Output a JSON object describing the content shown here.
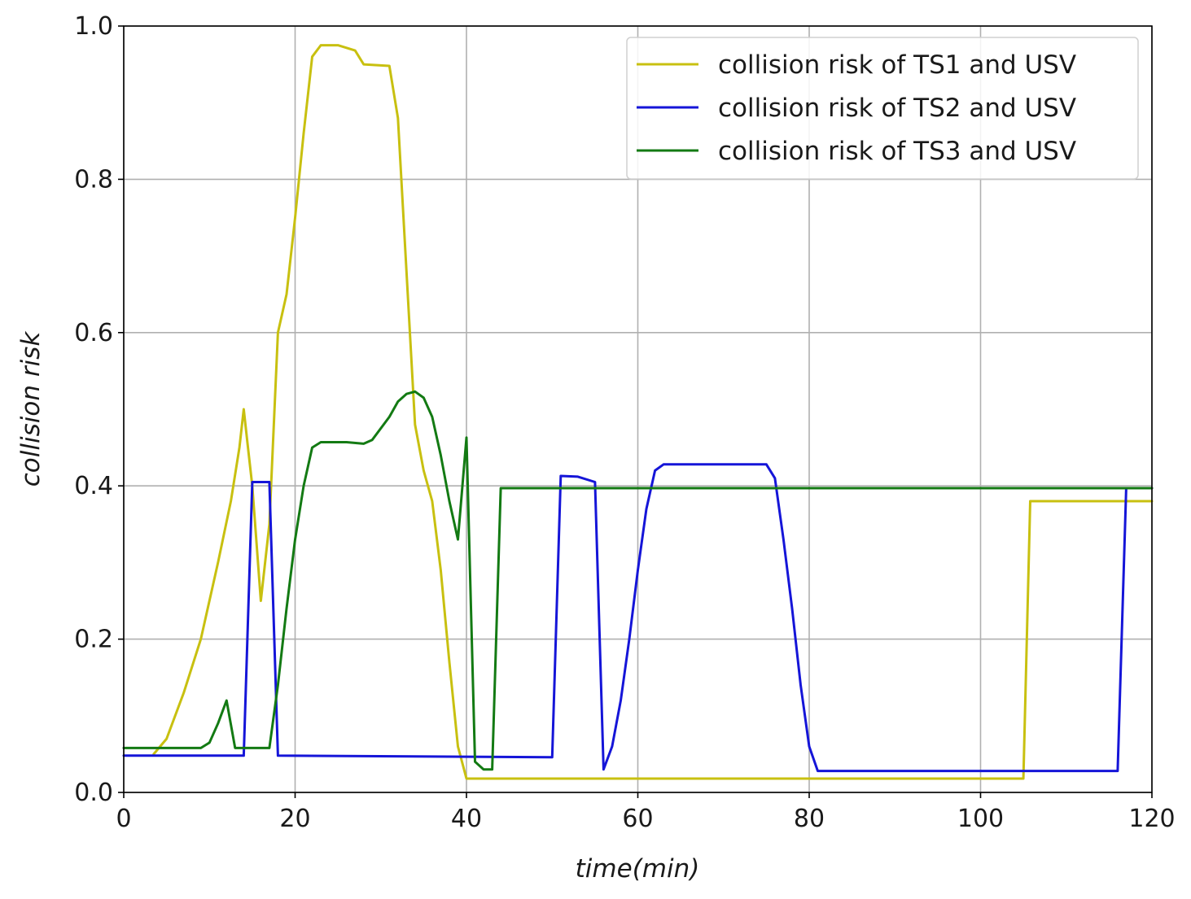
{
  "chart_data": {
    "type": "line",
    "title": "",
    "xlabel": "time(min)",
    "ylabel": "collision risk",
    "xlim": [
      0,
      120
    ],
    "ylim": [
      0,
      1.0
    ],
    "grid": true,
    "legend_position": "top-right",
    "xticks": [
      0,
      20,
      40,
      60,
      80,
      100,
      120
    ],
    "xtick_labels": [
      "0",
      "20",
      "40",
      "60",
      "80",
      "100",
      "120"
    ],
    "yticks": [
      0.0,
      0.2,
      0.4,
      0.6,
      0.8,
      1.0
    ],
    "ytick_labels": [
      "0.0",
      "0.2",
      "0.4",
      "0.6",
      "0.8",
      "1.0"
    ],
    "series": [
      {
        "name": "collision risk of TS1 and USV",
        "color": "#c8c010",
        "points": [
          [
            3.5,
            0.05
          ],
          [
            5,
            0.07
          ],
          [
            7,
            0.13
          ],
          [
            9,
            0.2
          ],
          [
            11,
            0.3
          ],
          [
            12.5,
            0.38
          ],
          [
            13.5,
            0.45
          ],
          [
            14,
            0.5
          ],
          [
            14.5,
            0.45
          ],
          [
            15,
            0.4
          ],
          [
            16,
            0.25
          ],
          [
            17,
            0.35
          ],
          [
            18,
            0.6
          ],
          [
            19,
            0.65
          ],
          [
            20,
            0.75
          ],
          [
            21,
            0.86
          ],
          [
            22,
            0.96
          ],
          [
            23,
            0.975
          ],
          [
            25,
            0.975
          ],
          [
            27,
            0.968
          ],
          [
            28,
            0.95
          ],
          [
            31,
            0.948
          ],
          [
            32,
            0.88
          ],
          [
            33,
            0.68
          ],
          [
            34,
            0.48
          ],
          [
            35,
            0.42
          ],
          [
            36,
            0.38
          ],
          [
            37,
            0.29
          ],
          [
            38,
            0.17
          ],
          [
            39,
            0.06
          ],
          [
            40,
            0.018
          ],
          [
            105,
            0.018
          ],
          [
            105.8,
            0.38
          ],
          [
            120,
            0.38
          ]
        ]
      },
      {
        "name": "collision risk of TS2 and USV",
        "color": "#1515d8",
        "points": [
          [
            0,
            0.048
          ],
          [
            14,
            0.048
          ],
          [
            15,
            0.405
          ],
          [
            17,
            0.405
          ],
          [
            18,
            0.048
          ],
          [
            50,
            0.046
          ],
          [
            51,
            0.413
          ],
          [
            53,
            0.412
          ],
          [
            55,
            0.405
          ],
          [
            56,
            0.03
          ],
          [
            57,
            0.06
          ],
          [
            58,
            0.12
          ],
          [
            59,
            0.2
          ],
          [
            60,
            0.29
          ],
          [
            61,
            0.37
          ],
          [
            62,
            0.42
          ],
          [
            63,
            0.428
          ],
          [
            75,
            0.428
          ],
          [
            76,
            0.41
          ],
          [
            77,
            0.33
          ],
          [
            78,
            0.24
          ],
          [
            79,
            0.14
          ],
          [
            80,
            0.06
          ],
          [
            81,
            0.028
          ],
          [
            116,
            0.028
          ],
          [
            117,
            0.397
          ],
          [
            120,
            0.397
          ]
        ]
      },
      {
        "name": "collision risk of TS3 and USV",
        "color": "#137a13",
        "points": [
          [
            0,
            0.058
          ],
          [
            9,
            0.058
          ],
          [
            10,
            0.065
          ],
          [
            11,
            0.09
          ],
          [
            12,
            0.12
          ],
          [
            13,
            0.058
          ],
          [
            17,
            0.058
          ],
          [
            18,
            0.14
          ],
          [
            19,
            0.24
          ],
          [
            20,
            0.33
          ],
          [
            21,
            0.4
          ],
          [
            22,
            0.45
          ],
          [
            23,
            0.457
          ],
          [
            26,
            0.457
          ],
          [
            28,
            0.455
          ],
          [
            29,
            0.46
          ],
          [
            31,
            0.49
          ],
          [
            32,
            0.51
          ],
          [
            33,
            0.52
          ],
          [
            34,
            0.523
          ],
          [
            35,
            0.515
          ],
          [
            36,
            0.49
          ],
          [
            37,
            0.44
          ],
          [
            38,
            0.38
          ],
          [
            39,
            0.33
          ],
          [
            40,
            0.463
          ],
          [
            41,
            0.04
          ],
          [
            42,
            0.03
          ],
          [
            43,
            0.03
          ],
          [
            44,
            0.397
          ],
          [
            120,
            0.397
          ]
        ]
      }
    ]
  }
}
